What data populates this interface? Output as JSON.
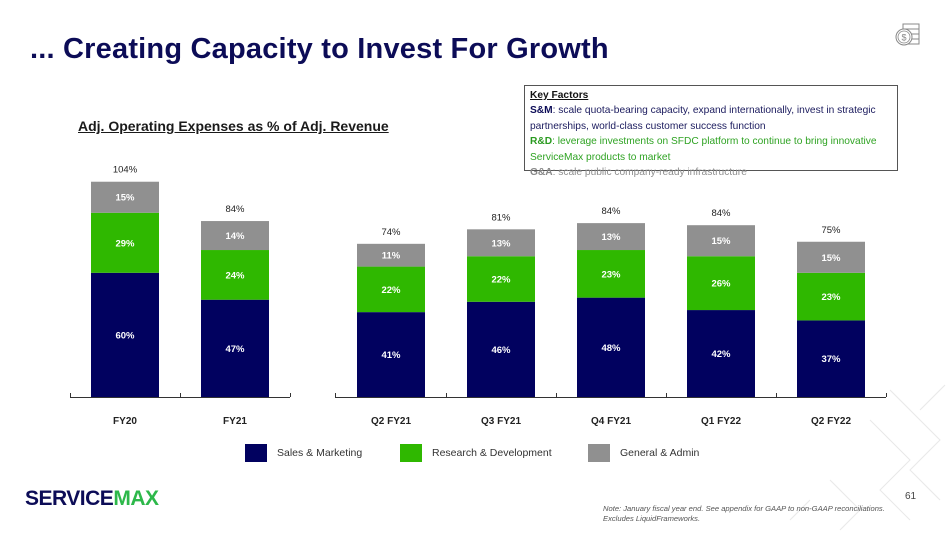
{
  "header": {
    "title": "... Creating Capacity to Invest For Growth",
    "icon": "dollar-coins-stack-icon"
  },
  "key_factors": {
    "heading": "Key Factors",
    "items": [
      {
        "label": "S&M",
        "text": ": scale quota-bearing capacity, expand internationally, invest in strategic partnerships, world-class customer success function"
      },
      {
        "label": "R&D",
        "text": ": leverage investments on SFDC platform to continue to bring innovative ServiceMax products to market"
      },
      {
        "label": "G&A",
        "text": ": scale public company-ready infrastructure"
      }
    ]
  },
  "colors": {
    "sales_marketing": "#01015f",
    "research_development": "#2fb800",
    "general_admin": "#909090",
    "title": "#0c0c57"
  },
  "chart_data": {
    "type": "bar",
    "stacked": true,
    "title": "Adj. Operating Expenses as % of Adj. Revenue",
    "xlabel": "",
    "ylabel": "",
    "ylim": [
      0,
      104
    ],
    "grid": false,
    "legend_position": "bottom",
    "groups": [
      {
        "name": "annual",
        "categories": [
          "FY20",
          "FY21"
        ]
      },
      {
        "name": "quarterly",
        "categories": [
          "Q2 FY21",
          "Q3 FY21",
          "Q4 FY21",
          "Q1 FY22",
          "Q2 FY22"
        ]
      }
    ],
    "categories": [
      "FY20",
      "FY21",
      "Q2 FY21",
      "Q3 FY21",
      "Q4 FY21",
      "Q1 FY22",
      "Q2 FY22"
    ],
    "series": [
      {
        "name": "Sales & Marketing",
        "values": [
          60,
          47,
          41,
          46,
          48,
          42,
          37
        ]
      },
      {
        "name": "Research & Development",
        "values": [
          29,
          24,
          22,
          22,
          23,
          26,
          23
        ]
      },
      {
        "name": "General & Admin",
        "values": [
          15,
          14,
          11,
          13,
          13,
          15,
          15
        ]
      }
    ],
    "totals": [
      104,
      84,
      74,
      81,
      84,
      84,
      75
    ],
    "value_suffix": "%"
  },
  "legend": [
    "Sales & Marketing",
    "Research & Development",
    "General & Admin"
  ],
  "footer": {
    "logo_part1": "SERVICE",
    "logo_part2": "MAX",
    "page_number": "61",
    "note_line1": "Note: January fiscal year end. See appendix for GAAP to non-GAAP reconciliations.",
    "note_line2": "Excludes LiquidFrameworks."
  }
}
